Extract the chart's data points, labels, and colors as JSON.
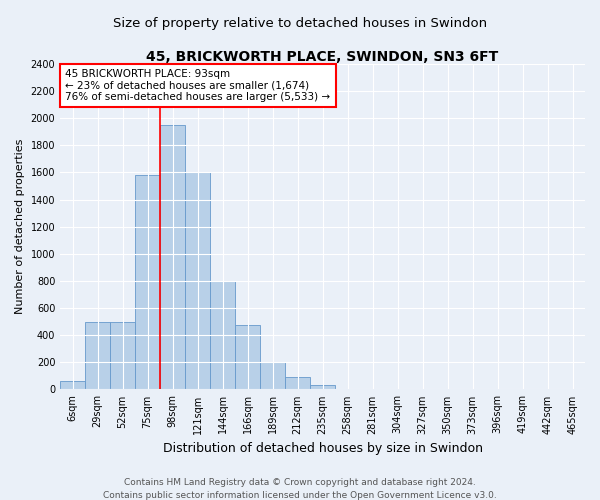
{
  "title": "45, BRICKWORTH PLACE, SWINDON, SN3 6FT",
  "subtitle": "Size of property relative to detached houses in Swindon",
  "xlabel": "Distribution of detached houses by size in Swindon",
  "ylabel": "Number of detached properties",
  "categories": [
    "6sqm",
    "29sqm",
    "52sqm",
    "75sqm",
    "98sqm",
    "121sqm",
    "144sqm",
    "166sqm",
    "189sqm",
    "212sqm",
    "235sqm",
    "258sqm",
    "281sqm",
    "304sqm",
    "327sqm",
    "350sqm",
    "373sqm",
    "396sqm",
    "419sqm",
    "442sqm",
    "465sqm"
  ],
  "values": [
    60,
    500,
    500,
    1580,
    1950,
    1600,
    800,
    475,
    200,
    90,
    35,
    0,
    0,
    0,
    0,
    0,
    0,
    0,
    0,
    0,
    0
  ],
  "bar_color": "#b8d0e8",
  "bar_edge_color": "#6699cc",
  "vline_color": "red",
  "vline_x_index": 3.5,
  "annotation_line1": "45 BRICKWORTH PLACE: 93sqm",
  "annotation_line2": "← 23% of detached houses are smaller (1,674)",
  "annotation_line3": "76% of semi-detached houses are larger (5,533) →",
  "ylim": [
    0,
    2400
  ],
  "yticks": [
    0,
    200,
    400,
    600,
    800,
    1000,
    1200,
    1400,
    1600,
    1800,
    2000,
    2200,
    2400
  ],
  "footer1": "Contains HM Land Registry data © Crown copyright and database right 2024.",
  "footer2": "Contains public sector information licensed under the Open Government Licence v3.0.",
  "bg_color": "#eaf0f8",
  "plot_bg_color": "#eaf0f8",
  "title_fontsize": 10,
  "xlabel_fontsize": 9,
  "ylabel_fontsize": 8,
  "tick_fontsize": 7,
  "annotation_fontsize": 7.5,
  "footer_fontsize": 6.5
}
